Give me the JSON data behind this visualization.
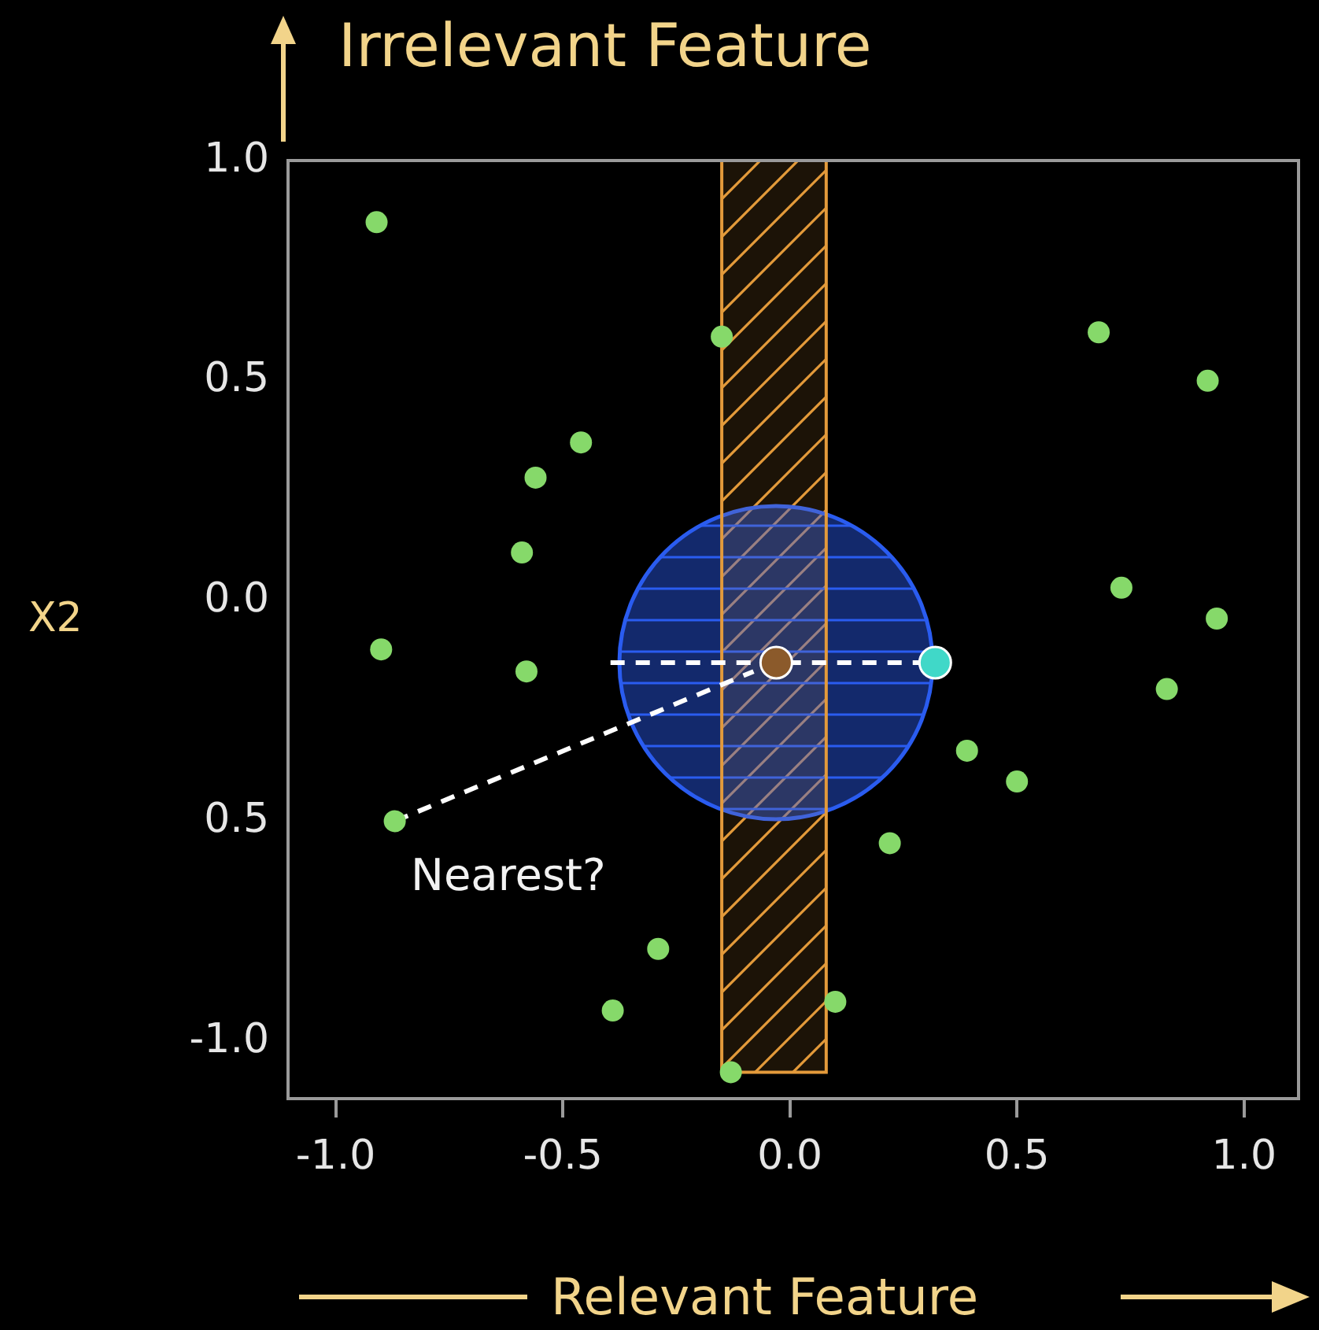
{
  "chart_data": {
    "type": "scatter",
    "title": "Irrelevant Feature",
    "xlabel": "Relevant Feature",
    "ylabel": "X2",
    "xlim": [
      -1.105,
      1.12
    ],
    "ylim": [
      -1.13,
      1.0
    ],
    "xticks": [
      {
        "value": -1,
        "label": "-1.0"
      },
      {
        "value": -0.5,
        "label": "-0.5"
      },
      {
        "value": 0,
        "label": "0.0"
      },
      {
        "value": 0.5,
        "label": "0.5"
      },
      {
        "value": 1,
        "label": "1.0"
      }
    ],
    "yticks": [
      {
        "value": 1,
        "label": "1.0"
      },
      {
        "value": 0.5,
        "label": "0.5"
      },
      {
        "value": 0,
        "label": "0.0"
      },
      {
        "value": -0.5,
        "label": "0.5"
      },
      {
        "value": -1,
        "label": "-1.0"
      }
    ],
    "grid": false,
    "legend": false,
    "marker": "circle",
    "bands": [
      {
        "axis": "x",
        "from": -0.15,
        "to": 0.08,
        "color": "#e39a3b"
      }
    ],
    "series": [
      {
        "type": "line",
        "color": "#ffffff",
        "marker": "none",
        "line_style": "dashed",
        "x": [
          -0.395,
          0.32
        ],
        "values": [
          -0.14,
          -0.14
        ]
      },
      {
        "type": "line",
        "color": "#ffffff",
        "marker": "none",
        "line_style": "dashed",
        "x": [
          -0.87,
          -0.08
        ],
        "values": [
          -0.5,
          -0.16
        ]
      },
      {
        "type": "scatter",
        "color": "#86d96a",
        "x": [
          -0.91,
          -0.15,
          0.68,
          0.92,
          -0.46,
          -0.56,
          -0.59,
          0.73,
          0.94,
          -0.9,
          -0.58,
          0.83,
          0.39,
          0.5,
          -0.87,
          0.22,
          -0.29,
          -0.39,
          0.1,
          -0.13
        ],
        "values": [
          0.86,
          0.6,
          0.61,
          0.5,
          0.36,
          0.28,
          0.11,
          0.03,
          -0.04,
          -0.11,
          -0.16,
          -0.2,
          -0.34,
          -0.41,
          -0.5,
          -0.55,
          -0.79,
          -0.93,
          -0.91,
          -1.07
        ]
      },
      {
        "type": "scatter",
        "color": "#8b5a2b",
        "x": [
          -0.03
        ],
        "values": [
          -0.14
        ]
      },
      {
        "type": "scatter",
        "color": "#40d8c8",
        "x": [
          0.32
        ],
        "values": [
          -0.14
        ]
      }
    ],
    "annotations": [
      "Nearest?"
    ]
  }
}
